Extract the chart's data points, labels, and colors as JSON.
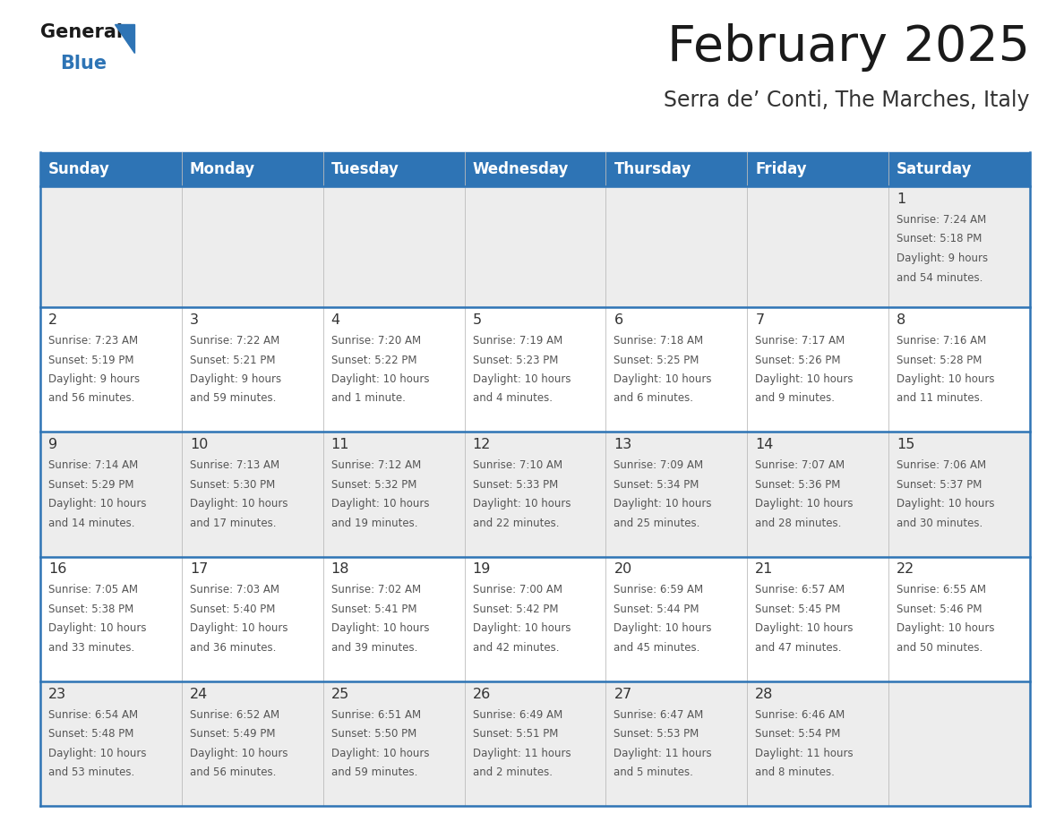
{
  "title": "February 2025",
  "subtitle": "Serra de’ Conti, The Marches, Italy",
  "header_bg": "#2E74B5",
  "header_text_color": "#FFFFFF",
  "cell_bg_alt": "#EDEDED",
  "cell_bg_white": "#FFFFFF",
  "divider_color": "#2E74B5",
  "text_color": "#555555",
  "day_num_color": "#333333",
  "days_of_week": [
    "Sunday",
    "Monday",
    "Tuesday",
    "Wednesday",
    "Thursday",
    "Friday",
    "Saturday"
  ],
  "weeks": [
    [
      {
        "day": null,
        "sunrise": null,
        "sunset": null,
        "daylight": null
      },
      {
        "day": null,
        "sunrise": null,
        "sunset": null,
        "daylight": null
      },
      {
        "day": null,
        "sunrise": null,
        "sunset": null,
        "daylight": null
      },
      {
        "day": null,
        "sunrise": null,
        "sunset": null,
        "daylight": null
      },
      {
        "day": null,
        "sunrise": null,
        "sunset": null,
        "daylight": null
      },
      {
        "day": null,
        "sunrise": null,
        "sunset": null,
        "daylight": null
      },
      {
        "day": 1,
        "sunrise": "7:24 AM",
        "sunset": "5:18 PM",
        "daylight": "9 hours\nand 54 minutes."
      }
    ],
    [
      {
        "day": 2,
        "sunrise": "7:23 AM",
        "sunset": "5:19 PM",
        "daylight": "9 hours\nand 56 minutes."
      },
      {
        "day": 3,
        "sunrise": "7:22 AM",
        "sunset": "5:21 PM",
        "daylight": "9 hours\nand 59 minutes."
      },
      {
        "day": 4,
        "sunrise": "7:20 AM",
        "sunset": "5:22 PM",
        "daylight": "10 hours\nand 1 minute."
      },
      {
        "day": 5,
        "sunrise": "7:19 AM",
        "sunset": "5:23 PM",
        "daylight": "10 hours\nand 4 minutes."
      },
      {
        "day": 6,
        "sunrise": "7:18 AM",
        "sunset": "5:25 PM",
        "daylight": "10 hours\nand 6 minutes."
      },
      {
        "day": 7,
        "sunrise": "7:17 AM",
        "sunset": "5:26 PM",
        "daylight": "10 hours\nand 9 minutes."
      },
      {
        "day": 8,
        "sunrise": "7:16 AM",
        "sunset": "5:28 PM",
        "daylight": "10 hours\nand 11 minutes."
      }
    ],
    [
      {
        "day": 9,
        "sunrise": "7:14 AM",
        "sunset": "5:29 PM",
        "daylight": "10 hours\nand 14 minutes."
      },
      {
        "day": 10,
        "sunrise": "7:13 AM",
        "sunset": "5:30 PM",
        "daylight": "10 hours\nand 17 minutes."
      },
      {
        "day": 11,
        "sunrise": "7:12 AM",
        "sunset": "5:32 PM",
        "daylight": "10 hours\nand 19 minutes."
      },
      {
        "day": 12,
        "sunrise": "7:10 AM",
        "sunset": "5:33 PM",
        "daylight": "10 hours\nand 22 minutes."
      },
      {
        "day": 13,
        "sunrise": "7:09 AM",
        "sunset": "5:34 PM",
        "daylight": "10 hours\nand 25 minutes."
      },
      {
        "day": 14,
        "sunrise": "7:07 AM",
        "sunset": "5:36 PM",
        "daylight": "10 hours\nand 28 minutes."
      },
      {
        "day": 15,
        "sunrise": "7:06 AM",
        "sunset": "5:37 PM",
        "daylight": "10 hours\nand 30 minutes."
      }
    ],
    [
      {
        "day": 16,
        "sunrise": "7:05 AM",
        "sunset": "5:38 PM",
        "daylight": "10 hours\nand 33 minutes."
      },
      {
        "day": 17,
        "sunrise": "7:03 AM",
        "sunset": "5:40 PM",
        "daylight": "10 hours\nand 36 minutes."
      },
      {
        "day": 18,
        "sunrise": "7:02 AM",
        "sunset": "5:41 PM",
        "daylight": "10 hours\nand 39 minutes."
      },
      {
        "day": 19,
        "sunrise": "7:00 AM",
        "sunset": "5:42 PM",
        "daylight": "10 hours\nand 42 minutes."
      },
      {
        "day": 20,
        "sunrise": "6:59 AM",
        "sunset": "5:44 PM",
        "daylight": "10 hours\nand 45 minutes."
      },
      {
        "day": 21,
        "sunrise": "6:57 AM",
        "sunset": "5:45 PM",
        "daylight": "10 hours\nand 47 minutes."
      },
      {
        "day": 22,
        "sunrise": "6:55 AM",
        "sunset": "5:46 PM",
        "daylight": "10 hours\nand 50 minutes."
      }
    ],
    [
      {
        "day": 23,
        "sunrise": "6:54 AM",
        "sunset": "5:48 PM",
        "daylight": "10 hours\nand 53 minutes."
      },
      {
        "day": 24,
        "sunrise": "6:52 AM",
        "sunset": "5:49 PM",
        "daylight": "10 hours\nand 56 minutes."
      },
      {
        "day": 25,
        "sunrise": "6:51 AM",
        "sunset": "5:50 PM",
        "daylight": "10 hours\nand 59 minutes."
      },
      {
        "day": 26,
        "sunrise": "6:49 AM",
        "sunset": "5:51 PM",
        "daylight": "11 hours\nand 2 minutes."
      },
      {
        "day": 27,
        "sunrise": "6:47 AM",
        "sunset": "5:53 PM",
        "daylight": "11 hours\nand 5 minutes."
      },
      {
        "day": 28,
        "sunrise": "6:46 AM",
        "sunset": "5:54 PM",
        "daylight": "11 hours\nand 8 minutes."
      },
      {
        "day": null,
        "sunrise": null,
        "sunset": null,
        "daylight": null
      }
    ]
  ],
  "logo_color_general": "#1a1a1a",
  "logo_color_blue": "#2E74B5",
  "title_color": "#1a1a1a",
  "subtitle_color": "#333333"
}
